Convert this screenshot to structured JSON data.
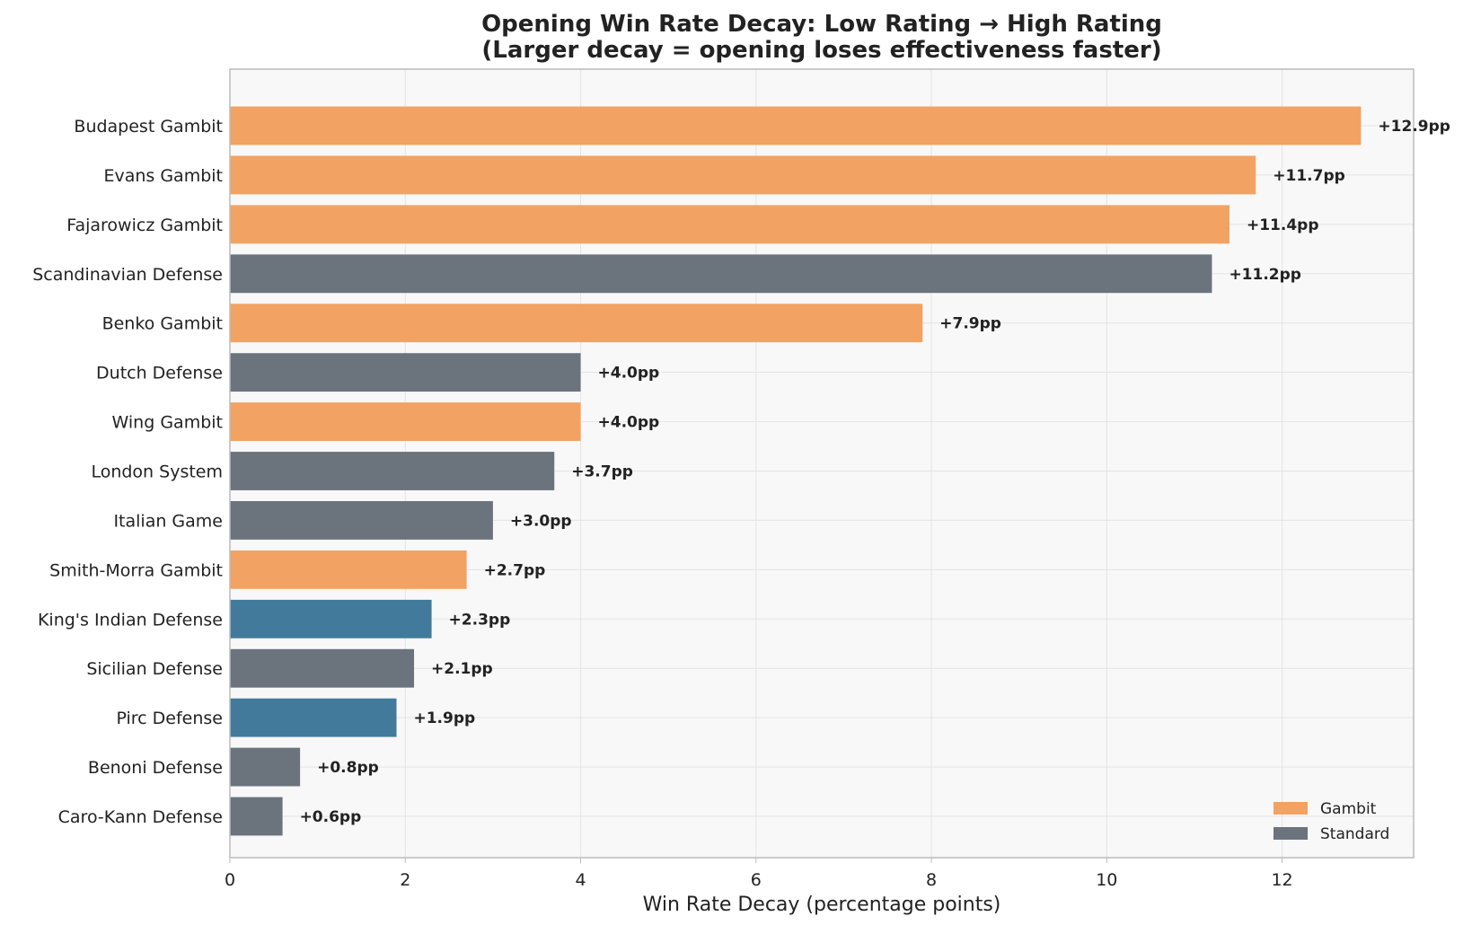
{
  "chart_data": {
    "type": "bar",
    "orientation": "horizontal",
    "title_line1": "Opening Win Rate Decay: Low Rating → High Rating",
    "title_line2": "(Larger decay = opening loses effectiveness faster)",
    "xlabel": "Win Rate Decay (percentage points)",
    "ylabel": "",
    "xlim": [
      0,
      13.5
    ],
    "xticks": [
      0,
      2,
      4,
      6,
      8,
      10,
      12
    ],
    "grid": true,
    "legend_position": "lower-right",
    "colors": {
      "gambit": "#F2A262",
      "standard": "#6B737D",
      "blue": "#427A9B",
      "plot_background": "#F8F8F8",
      "grid": "#E4E4E4",
      "frame": "#BBBBBB",
      "text": "#222222"
    },
    "legend": [
      {
        "label": "Gambit",
        "color_key": "gambit"
      },
      {
        "label": "Standard",
        "color_key": "standard"
      }
    ],
    "bars": [
      {
        "category": "Budapest Gambit",
        "value": 12.9,
        "label": "+12.9pp",
        "color_key": "gambit"
      },
      {
        "category": "Evans Gambit",
        "value": 11.7,
        "label": "+11.7pp",
        "color_key": "gambit"
      },
      {
        "category": "Fajarowicz Gambit",
        "value": 11.4,
        "label": "+11.4pp",
        "color_key": "gambit"
      },
      {
        "category": "Scandinavian Defense",
        "value": 11.2,
        "label": "+11.2pp",
        "color_key": "standard"
      },
      {
        "category": "Benko Gambit",
        "value": 7.9,
        "label": "+7.9pp",
        "color_key": "gambit"
      },
      {
        "category": "Dutch Defense",
        "value": 4.0,
        "label": "+4.0pp",
        "color_key": "standard"
      },
      {
        "category": "Wing Gambit",
        "value": 4.0,
        "label": "+4.0pp",
        "color_key": "gambit"
      },
      {
        "category": "London System",
        "value": 3.7,
        "label": "+3.7pp",
        "color_key": "standard"
      },
      {
        "category": "Italian Game",
        "value": 3.0,
        "label": "+3.0pp",
        "color_key": "standard"
      },
      {
        "category": "Smith-Morra Gambit",
        "value": 2.7,
        "label": "+2.7pp",
        "color_key": "gambit"
      },
      {
        "category": "King's Indian Defense",
        "value": 2.3,
        "label": "+2.3pp",
        "color_key": "blue"
      },
      {
        "category": "Sicilian Defense",
        "value": 2.1,
        "label": "+2.1pp",
        "color_key": "standard"
      },
      {
        "category": "Pirc Defense",
        "value": 1.9,
        "label": "+1.9pp",
        "color_key": "blue"
      },
      {
        "category": "Benoni Defense",
        "value": 0.8,
        "label": "+0.8pp",
        "color_key": "standard"
      },
      {
        "category": "Caro-Kann Defense",
        "value": 0.6,
        "label": "+0.6pp",
        "color_key": "standard"
      }
    ]
  }
}
